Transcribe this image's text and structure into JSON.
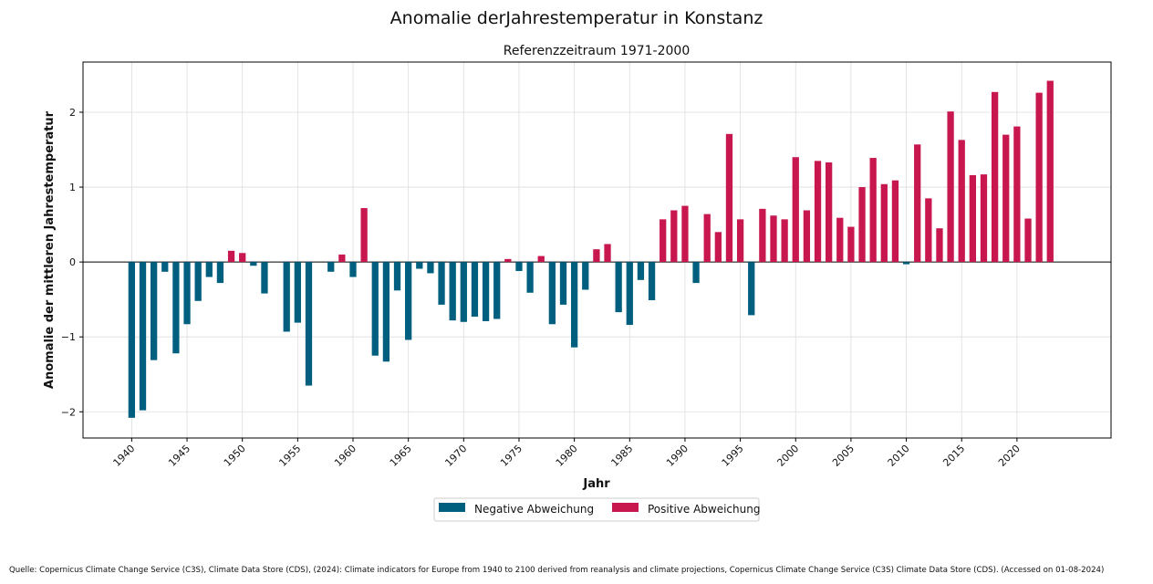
{
  "chart_data": {
    "type": "bar",
    "title": "Anomalie derJahrestemperatur in Konstanz",
    "subtitle": "Referenzzeitraum 1971-2000",
    "xlabel": "Jahr",
    "ylabel": "Anomalie der mittleren Jahrestemperatur",
    "xlim": [
      1935.6,
      2028.5
    ],
    "ylim": [
      -2.35,
      2.67
    ],
    "x_ticks": [
      1940,
      1945,
      1950,
      1955,
      1960,
      1965,
      1970,
      1975,
      1980,
      1985,
      1990,
      1995,
      2000,
      2005,
      2010,
      2015,
      2020
    ],
    "y_ticks": [
      -2,
      -1,
      0,
      1,
      2
    ],
    "grid": true,
    "legend": {
      "placement": "bottom-center",
      "entries": [
        {
          "label": "Negative Abweichung",
          "color": "#005f7f"
        },
        {
          "label": "Positive Abweichung",
          "color": "#c8174f"
        }
      ]
    },
    "colors": {
      "negative": "#005f7f",
      "positive": "#c8174f"
    },
    "years": [
      1940,
      1941,
      1942,
      1943,
      1944,
      1945,
      1946,
      1947,
      1948,
      1949,
      1950,
      1951,
      1952,
      1953,
      1954,
      1955,
      1956,
      1957,
      1958,
      1959,
      1960,
      1961,
      1962,
      1963,
      1964,
      1965,
      1966,
      1967,
      1968,
      1969,
      1970,
      1971,
      1972,
      1973,
      1974,
      1975,
      1976,
      1977,
      1978,
      1979,
      1980,
      1981,
      1982,
      1983,
      1984,
      1985,
      1986,
      1987,
      1988,
      1989,
      1990,
      1991,
      1992,
      1993,
      1994,
      1995,
      1996,
      1997,
      1998,
      1999,
      2000,
      2001,
      2002,
      2003,
      2004,
      2005,
      2006,
      2007,
      2008,
      2009,
      2010,
      2011,
      2012,
      2013,
      2014,
      2015,
      2016,
      2017,
      2018,
      2019,
      2020,
      2021,
      2022,
      2023
    ],
    "values": [
      -2.08,
      -1.98,
      -1.31,
      -0.13,
      -1.22,
      -0.83,
      -0.52,
      -0.2,
      -0.28,
      0.15,
      0.12,
      -0.05,
      -0.42,
      0.0,
      -0.93,
      -0.81,
      -1.65,
      0.0,
      -0.13,
      0.1,
      -0.2,
      0.72,
      -1.25,
      -1.33,
      -0.38,
      -1.04,
      -0.09,
      -0.15,
      -0.57,
      -0.78,
      -0.8,
      -0.73,
      -0.79,
      -0.76,
      0.04,
      -0.12,
      -0.41,
      0.08,
      -0.83,
      -0.57,
      -1.14,
      -0.37,
      0.17,
      0.24,
      -0.67,
      -0.84,
      -0.24,
      -0.51,
      0.57,
      0.69,
      0.75,
      -0.28,
      0.64,
      0.4,
      1.71,
      0.57,
      -0.71,
      0.71,
      0.62,
      0.57,
      1.4,
      0.69,
      1.35,
      1.33,
      0.59,
      0.47,
      1.0,
      1.39,
      1.04,
      1.09,
      -0.03,
      1.57,
      0.85,
      0.45,
      2.01,
      1.63,
      1.16,
      1.17,
      2.27,
      1.7,
      1.81,
      0.58,
      2.26,
      2.42
    ]
  },
  "source_note": "Quelle: Copernicus Climate Change Service (C3S), Climate Data Store (CDS), (2024): Climate indicators for Europe from 1940 to 2100 derived from reanalysis and climate projections, Copernicus Climate Change Service (C3S) Climate Data Store (CDS). (Accessed on 01-08-2024)"
}
